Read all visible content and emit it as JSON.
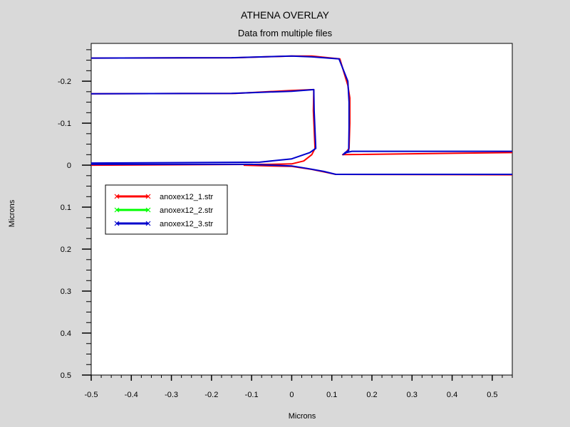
{
  "chart_data": {
    "type": "line",
    "title": "ATHENA OVERLAY",
    "subtitle": "Data from multiple files",
    "xlabel": "Microns",
    "ylabel": "Microns",
    "xlim": [
      -0.5,
      0.55
    ],
    "ylim": [
      0.5,
      -0.29
    ],
    "y_inverted": true,
    "x_ticks": [
      -0.5,
      -0.4,
      -0.3,
      -0.2,
      -0.1,
      0,
      0.1,
      0.2,
      0.3,
      0.4,
      0.5
    ],
    "x_tick_labels": [
      "-0.5",
      "-0.4",
      "-0.3",
      "-0.2",
      "-0.1",
      "0",
      "0.1",
      "0.2",
      "0.3",
      "0.4",
      "0.5"
    ],
    "y_ticks": [
      -0.2,
      -0.1,
      0,
      0.1,
      0.2,
      0.3,
      0.4,
      0.5
    ],
    "y_tick_labels": [
      "-0.2",
      "-0.1",
      "0",
      "0.1",
      "0.2",
      "0.3",
      "0.4",
      "0.5"
    ],
    "grid": false,
    "legend_position": "upper-left",
    "series": [
      {
        "name": "anoxex12_1.str",
        "color": "#ff0000",
        "marker": "x",
        "curves": [
          [
            [
              -0.5,
              -0.255
            ],
            [
              -0.14,
              -0.256
            ],
            [
              0.0,
              -0.26
            ],
            [
              0.05,
              -0.26
            ],
            [
              0.12,
              -0.253
            ],
            [
              0.14,
              -0.19
            ],
            [
              0.145,
              -0.16
            ],
            [
              0.145,
              -0.1
            ],
            [
              0.143,
              -0.04
            ],
            [
              0.135,
              -0.03
            ],
            [
              0.127,
              -0.025
            ],
            [
              0.55,
              -0.03
            ]
          ],
          [
            [
              -0.5,
              -0.17
            ],
            [
              -0.14,
              -0.171
            ],
            [
              0.0,
              -0.178
            ],
            [
              0.055,
              -0.18
            ],
            [
              0.054,
              -0.13
            ],
            [
              0.058,
              -0.04
            ],
            [
              0.05,
              -0.025
            ],
            [
              0.03,
              -0.01
            ],
            [
              0.0,
              -0.003
            ],
            [
              -0.05,
              -0.002
            ],
            [
              -0.5,
              0.0
            ]
          ],
          [
            [
              -0.12,
              0.0
            ],
            [
              -0.05,
              0.002
            ],
            [
              0.0,
              0.003
            ],
            [
              0.05,
              0.01
            ],
            [
              0.09,
              0.018
            ],
            [
              0.11,
              0.022
            ],
            [
              0.55,
              0.023
            ]
          ]
        ]
      },
      {
        "name": "anoxex12_2.str",
        "color": "#00ff00",
        "marker": "x",
        "curves": []
      },
      {
        "name": "anoxex12_3.str",
        "color": "#0000cc",
        "marker": "x",
        "curves": [
          [
            [
              -0.5,
              -0.255
            ],
            [
              -0.15,
              -0.256
            ],
            [
              0.0,
              -0.26
            ],
            [
              0.05,
              -0.258
            ],
            [
              0.118,
              -0.253
            ],
            [
              0.14,
              -0.2
            ],
            [
              0.143,
              -0.15
            ],
            [
              0.143,
              -0.09
            ],
            [
              0.142,
              -0.035
            ],
            [
              0.133,
              -0.03
            ],
            [
              0.128,
              -0.025
            ],
            [
              0.136,
              -0.03
            ],
            [
              0.15,
              -0.033
            ],
            [
              0.55,
              -0.033
            ]
          ],
          [
            [
              -0.5,
              -0.17
            ],
            [
              -0.15,
              -0.171
            ],
            [
              0.0,
              -0.176
            ],
            [
              0.055,
              -0.18
            ],
            [
              0.056,
              -0.13
            ],
            [
              0.06,
              -0.04
            ],
            [
              0.045,
              -0.03
            ],
            [
              0.0,
              -0.015
            ],
            [
              -0.08,
              -0.007
            ],
            [
              -0.5,
              -0.005
            ]
          ],
          [
            [
              -0.5,
              -0.002
            ],
            [
              -0.1,
              -0.002
            ],
            [
              0.0,
              0.002
            ],
            [
              0.04,
              0.008
            ],
            [
              0.08,
              0.015
            ],
            [
              0.11,
              0.022
            ],
            [
              0.55,
              0.022
            ]
          ]
        ]
      }
    ]
  }
}
